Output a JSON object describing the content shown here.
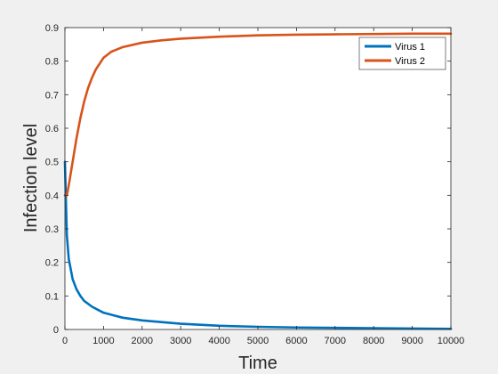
{
  "chart_data": {
    "type": "line",
    "xlabel": "Time",
    "ylabel": "Infection level",
    "xlim": [
      0,
      10000
    ],
    "ylim": [
      0,
      0.9
    ],
    "xticks": [
      0,
      1000,
      2000,
      3000,
      4000,
      5000,
      6000,
      7000,
      8000,
      9000,
      10000
    ],
    "yticks": [
      0,
      0.1,
      0.2,
      0.3,
      0.4,
      0.5,
      0.6,
      0.7,
      0.8,
      0.9
    ],
    "grid": false,
    "legend_position": "top-right",
    "series": [
      {
        "name": "Virus 1",
        "color": "#0072bd",
        "x": [
          0,
          50,
          100,
          200,
          300,
          400,
          500,
          700,
          1000,
          1500,
          2000,
          3000,
          4000,
          5000,
          6000,
          7000,
          8000,
          9000,
          10000
        ],
        "y": [
          0.5,
          0.28,
          0.21,
          0.15,
          0.12,
          0.1,
          0.085,
          0.068,
          0.05,
          0.035,
          0.027,
          0.017,
          0.011,
          0.008,
          0.006,
          0.005,
          0.004,
          0.003,
          0.002
        ]
      },
      {
        "name": "Virus 2",
        "color": "#d95319",
        "x": [
          0,
          50,
          100,
          200,
          300,
          400,
          500,
          600,
          700,
          800,
          1000,
          1200,
          1500,
          2000,
          2500,
          3000,
          4000,
          5000,
          6000,
          7000,
          8000,
          9000,
          10000
        ],
        "y": [
          0.4,
          0.4,
          0.43,
          0.5,
          0.57,
          0.63,
          0.68,
          0.72,
          0.75,
          0.775,
          0.81,
          0.828,
          0.842,
          0.855,
          0.862,
          0.867,
          0.873,
          0.877,
          0.879,
          0.88,
          0.881,
          0.882,
          0.882
        ]
      }
    ]
  }
}
